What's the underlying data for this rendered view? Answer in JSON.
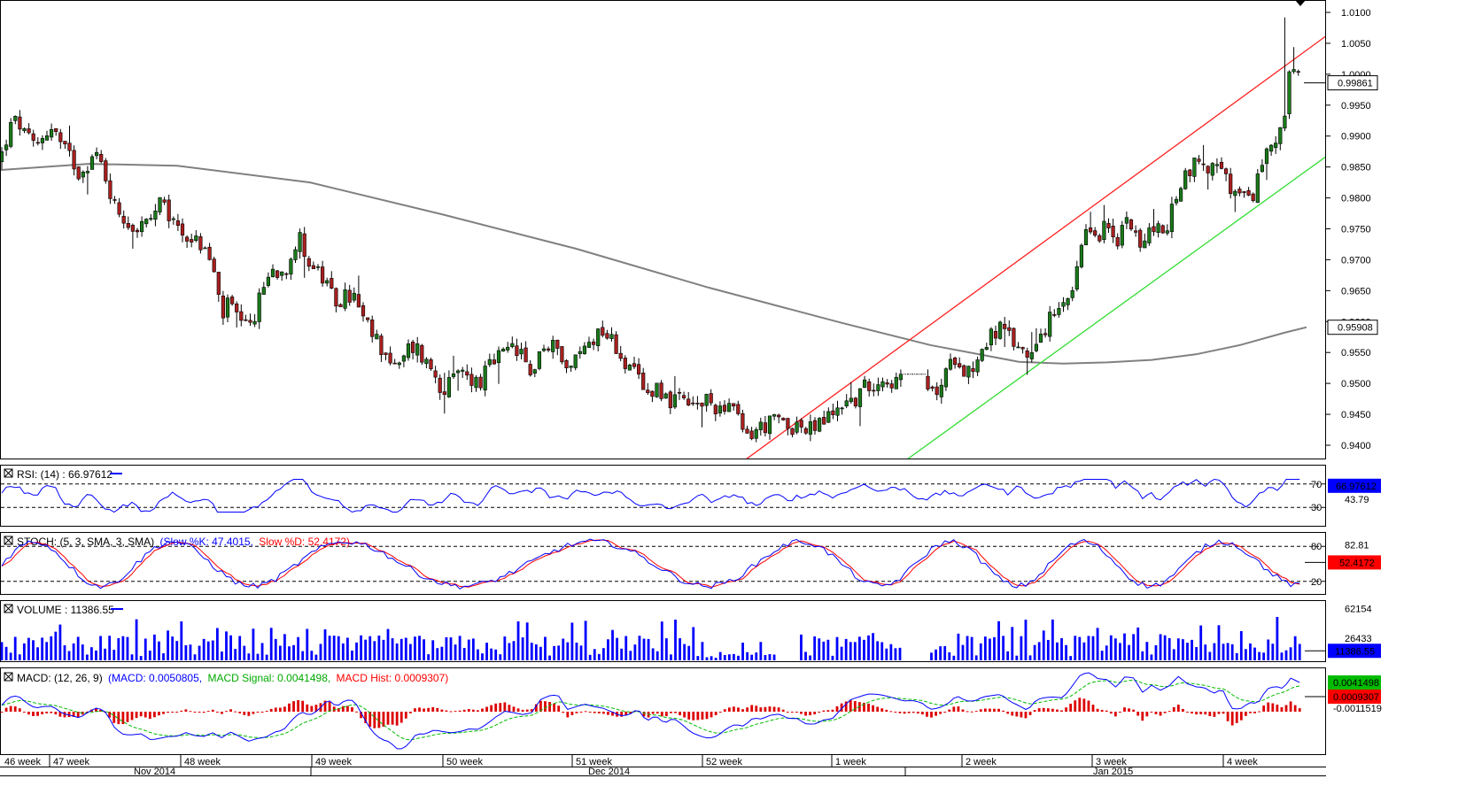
{
  "chart_data": {
    "type": "candlestick",
    "instrument_price_panel": {
      "y_ticks": [
        "1.0100",
        "1.0050",
        "1.0000",
        "0.9950",
        "0.9900",
        "0.9850",
        "0.9800",
        "0.9750",
        "0.9700",
        "0.9650",
        "0.9600",
        "0.9550",
        "0.9500",
        "0.9450",
        "0.9400"
      ],
      "ylim": [
        0.938,
        1.0115
      ],
      "last_price": "0.99861",
      "ma_value": "0.95908",
      "colors": {
        "up": "#1a7a1a",
        "down": "#aa1f1f",
        "ma": "#808080",
        "upper_channel": "#ff2020",
        "lower_channel": "#33dd33"
      },
      "moving_average_path": [
        [
          0,
          0.9845
        ],
        [
          100,
          0.9855
        ],
        [
          200,
          0.9852
        ],
        [
          350,
          0.9825
        ],
        [
          500,
          0.9773
        ],
        [
          650,
          0.9718
        ],
        [
          800,
          0.9655
        ],
        [
          950,
          0.9598
        ],
        [
          1050,
          0.9562
        ],
        [
          1150,
          0.9535
        ],
        [
          1200,
          0.9532
        ],
        [
          1250,
          0.9534
        ],
        [
          1300,
          0.9538
        ],
        [
          1350,
          0.9547
        ],
        [
          1400,
          0.9562
        ],
        [
          1450,
          0.9582
        ],
        [
          1475,
          0.95908
        ]
      ],
      "upper_channel": [
        [
          0.9375,
          840
        ],
        [
          1.0065,
          1500
        ]
      ],
      "lower_channel": [
        [
          0.9375,
          1022
        ],
        [
          0.987,
          1500
        ]
      ],
      "close_path": [
        [
          0,
          0.986
        ],
        [
          10,
          0.991
        ],
        [
          20,
          0.9925
        ],
        [
          30,
          0.9895
        ],
        [
          40,
          0.988
        ],
        [
          50,
          0.9905
        ],
        [
          60,
          0.9915
        ],
        [
          70,
          0.988
        ],
        [
          80,
          0.9865
        ],
        [
          90,
          0.984
        ],
        [
          100,
          0.986
        ],
        [
          110,
          0.987
        ],
        [
          120,
          0.983
        ],
        [
          130,
          0.9785
        ],
        [
          140,
          0.977
        ],
        [
          150,
          0.975
        ],
        [
          160,
          0.9755
        ],
        [
          170,
          0.976
        ],
        [
          180,
          0.979
        ],
        [
          190,
          0.977
        ],
        [
          200,
          0.9755
        ],
        [
          210,
          0.974
        ],
        [
          220,
          0.973
        ],
        [
          230,
          0.972
        ],
        [
          240,
          0.969
        ],
        [
          250,
          0.961
        ],
        [
          260,
          0.963
        ],
        [
          270,
          0.9595
        ],
        [
          280,
          0.9585
        ],
        [
          290,
          0.962
        ],
        [
          300,
          0.967
        ],
        [
          310,
          0.9685
        ],
        [
          320,
          0.968
        ],
        [
          330,
          0.9715
        ],
        [
          340,
          0.9735
        ],
        [
          350,
          0.969
        ],
        [
          360,
          0.968
        ],
        [
          370,
          0.965
        ],
        [
          380,
          0.963
        ],
        [
          390,
          0.964
        ],
        [
          400,
          0.964
        ],
        [
          410,
          0.96
        ],
        [
          420,
          0.958
        ],
        [
          430,
          0.956
        ],
        [
          440,
          0.954
        ],
        [
          450,
          0.952
        ],
        [
          460,
          0.9555
        ],
        [
          470,
          0.956
        ],
        [
          480,
          0.9535
        ],
        [
          490,
          0.952
        ],
        [
          500,
          0.949
        ],
        [
          510,
          0.95
        ],
        [
          520,
          0.952
        ],
        [
          530,
          0.951
        ],
        [
          540,
          0.95
        ],
        [
          550,
          0.952
        ],
        [
          560,
          0.954
        ],
        [
          570,
          0.9545
        ],
        [
          580,
          0.956
        ],
        [
          590,
          0.954
        ],
        [
          600,
          0.951
        ],
        [
          610,
          0.956
        ],
        [
          620,
          0.955
        ],
        [
          630,
          0.957
        ],
        [
          640,
          0.952
        ],
        [
          650,
          0.954
        ],
        [
          660,
          0.956
        ],
        [
          670,
          0.9575
        ],
        [
          680,
          0.959
        ],
        [
          690,
          0.957
        ],
        [
          700,
          0.955
        ],
        [
          710,
          0.952
        ],
        [
          720,
          0.951
        ],
        [
          730,
          0.948
        ],
        [
          740,
          0.95
        ],
        [
          750,
          0.948
        ],
        [
          760,
          0.947
        ],
        [
          770,
          0.947
        ],
        [
          780,
          0.946
        ],
        [
          790,
          0.9465
        ],
        [
          800,
          0.947
        ],
        [
          810,
          0.946
        ],
        [
          820,
          0.947
        ],
        [
          830,
          0.945
        ],
        [
          840,
          0.9415
        ],
        [
          850,
          0.942
        ],
        [
          860,
          0.943
        ],
        [
          870,
          0.9435
        ],
        [
          880,
          0.944
        ],
        [
          890,
          0.943
        ],
        [
          900,
          0.9435
        ],
        [
          910,
          0.942
        ],
        [
          920,
          0.943
        ],
        [
          930,
          0.944
        ],
        [
          940,
          0.945
        ],
        [
          950,
          0.947
        ],
        [
          960,
          0.947
        ],
        [
          970,
          0.948
        ],
        [
          980,
          0.95
        ],
        [
          990,
          0.9505
        ],
        [
          1000,
          0.951
        ],
        [
          1010,
          0.95
        ],
        [
          1020,
          0.9505
        ],
        [
          1030,
          0.9505
        ],
        [
          1040,
          0.951
        ],
        [
          1050,
          0.948
        ],
        [
          1060,
          0.949
        ],
        [
          1070,
          0.952
        ],
        [
          1080,
          0.955
        ],
        [
          1090,
          0.952
        ],
        [
          1100,
          0.953
        ],
        [
          1110,
          0.956
        ],
        [
          1120,
          0.958
        ],
        [
          1130,
          0.959
        ],
        [
          1140,
          0.957
        ],
        [
          1150,
          0.956
        ],
        [
          1160,
          0.9545
        ],
        [
          1170,
          0.9575
        ],
        [
          1180,
          0.959
        ],
        [
          1190,
          0.961
        ],
        [
          1200,
          0.962
        ],
        [
          1210,
          0.964
        ],
        [
          1220,
          0.971
        ],
        [
          1230,
          0.975
        ],
        [
          1240,
          0.974
        ],
        [
          1250,
          0.976
        ],
        [
          1260,
          0.971
        ],
        [
          1270,
          0.9775
        ],
        [
          1280,
          0.976
        ],
        [
          1290,
          0.971
        ],
        [
          1300,
          0.976
        ],
        [
          1310,
          0.974
        ],
        [
          1320,
          0.976
        ],
        [
          1330,
          0.982
        ],
        [
          1340,
          0.984
        ],
        [
          1350,
          0.986
        ],
        [
          1360,
          0.985
        ],
        [
          1370,
          0.985
        ],
        [
          1380,
          0.984
        ],
        [
          1390,
          0.981
        ],
        [
          1400,
          0.98
        ],
        [
          1410,
          0.979
        ],
        [
          1420,
          0.983
        ],
        [
          1430,
          0.988
        ],
        [
          1440,
          0.99
        ],
        [
          1450,
          0.993
        ],
        [
          1455,
          1.0
        ],
        [
          1465,
          0.999
        ],
        [
          1472,
          0.9986
        ]
      ]
    },
    "x_axis": {
      "week_labels": [
        {
          "label": "46 week",
          "x": 5
        },
        {
          "label": "47 week",
          "x": 60
        },
        {
          "label": "48 week",
          "x": 208
        },
        {
          "label": "49 week",
          "x": 356
        },
        {
          "label": "50 week",
          "x": 504
        },
        {
          "label": "51 week",
          "x": 650
        },
        {
          "label": "52 week",
          "x": 797
        },
        {
          "label": "1 week",
          "x": 943
        },
        {
          "label": "2 week",
          "x": 1090
        },
        {
          "label": "3 week",
          "x": 1237
        },
        {
          "label": "4 week",
          "x": 1385
        }
      ],
      "month_labels": [
        {
          "label": "Nov 2014",
          "x": 175
        },
        {
          "label": "Dec 2014",
          "x": 688
        },
        {
          "label": "Jan 2015",
          "x": 1258
        }
      ]
    },
    "rsi": {
      "title": "RSI: (14) : 66.97612",
      "levels": [
        "70",
        "30"
      ],
      "right_labels": [
        "66.97612",
        "43.79"
      ],
      "ylim": [
        0,
        100
      ]
    },
    "stoch": {
      "title_prefix": "STOCH: (5, 3, SMA, 3, SMA)",
      "slow_k_label": "(Slow %K: 47.4015,",
      "slow_d_label": "Slow %D: 52.4172)",
      "levels": [
        "80",
        "20"
      ],
      "right_labels": [
        "82.81",
        "52.4172"
      ],
      "ylim": [
        0,
        100
      ]
    },
    "volume": {
      "title": "VOLUME : 11386.55",
      "right_labels": [
        "62154",
        "26433",
        "11386.55"
      ],
      "ylim": [
        0,
        70000
      ]
    },
    "macd": {
      "title_prefix": "MACD: (12, 26, 9)",
      "macd_label": "(MACD: 0.0050805,",
      "signal_label": "MACD Signal: 0.0041498,",
      "hist_label": "MACD Hist: 0.0009307)",
      "right_labels": [
        "0.0041498",
        "0.0009307",
        "-0.0011519"
      ],
      "ylim": [
        -0.0065,
        0.0065
      ]
    }
  }
}
